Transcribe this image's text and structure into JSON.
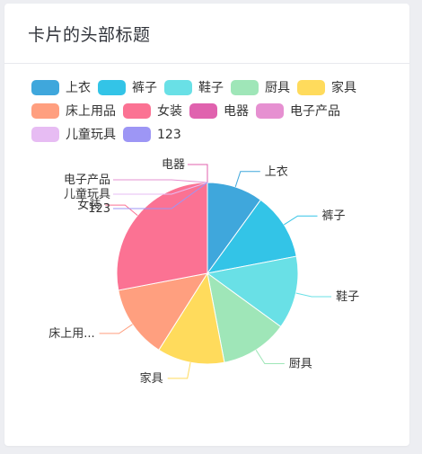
{
  "card": {
    "title": "卡片的头部标题"
  },
  "chart_data": {
    "type": "pie",
    "legend_position": "top",
    "series": [
      {
        "name": "上衣",
        "value": 10,
        "color": "#3fa7dc",
        "label": "上衣"
      },
      {
        "name": "裤子",
        "value": 12,
        "color": "#33c4e7",
        "label": "裤子"
      },
      {
        "name": "鞋子",
        "value": 13,
        "color": "#69e0e6",
        "label": "鞋子"
      },
      {
        "name": "厨具",
        "value": 12,
        "color": "#9fe6b8",
        "label": "厨具"
      },
      {
        "name": "家具",
        "value": 12,
        "color": "#ffdb5c",
        "label": "家具"
      },
      {
        "name": "床上用品",
        "value": 13,
        "color": "#ff9f7f",
        "label": "床上用..."
      },
      {
        "name": "女装",
        "value": 28,
        "color": "#fb7293",
        "label": "女装"
      },
      {
        "name": "电器",
        "value": 0,
        "color": "#e062ae",
        "label": "电器"
      },
      {
        "name": "电子产品",
        "value": 0,
        "color": "#e690d1",
        "label": "电子产品"
      },
      {
        "name": "儿童玩具",
        "value": 0,
        "color": "#e7bcf3",
        "label": "儿童玩具"
      },
      {
        "name": "123",
        "value": 0,
        "color": "#9d96f5",
        "label": "123"
      }
    ]
  }
}
